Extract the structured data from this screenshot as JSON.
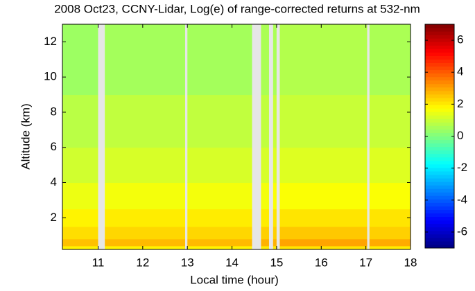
{
  "chart_data": {
    "type": "heatmap",
    "title": "2008 Oct23, CCNY-Lidar, Log(e) of range-corrected returns at 532-nm",
    "xlabel": "Local time (hour)",
    "ylabel": "Altitude (km)",
    "xlim": [
      10.2,
      18.0
    ],
    "xticks": [
      11,
      12,
      13,
      14,
      15,
      16,
      17,
      18
    ],
    "ylim": [
      0.2,
      13
    ],
    "yticks": [
      2,
      4,
      6,
      8,
      10,
      12
    ],
    "x_bins": [
      10.2,
      11.0,
      11.15,
      12.95,
      13.0,
      14.45,
      14.65,
      14.83,
      14.92,
      15.0,
      15.07,
      17.03,
      17.08,
      18.0
    ],
    "y_bins": [
      0.2,
      0.4,
      0.8,
      1.5,
      2.5,
      4,
      6,
      9,
      13
    ],
    "z": [
      [
        1.9,
        null,
        1.9,
        null,
        1.9,
        null,
        2.0,
        null,
        2.0,
        null,
        2.1,
        null,
        2.0
      ],
      [
        2.6,
        null,
        2.7,
        null,
        2.7,
        null,
        2.8,
        null,
        2.8,
        null,
        3.0,
        null,
        2.9
      ],
      [
        2.2,
        null,
        2.3,
        null,
        2.3,
        null,
        2.4,
        null,
        2.4,
        null,
        2.5,
        null,
        2.4
      ],
      [
        1.9,
        null,
        2.0,
        null,
        2.0,
        null,
        2.0,
        null,
        2.1,
        null,
        2.1,
        null,
        2.1
      ],
      [
        1.5,
        null,
        1.6,
        null,
        1.6,
        null,
        1.6,
        null,
        1.7,
        null,
        1.7,
        null,
        1.7
      ],
      [
        1.1,
        null,
        1.2,
        null,
        1.2,
        null,
        1.2,
        null,
        1.3,
        null,
        1.3,
        null,
        1.3
      ],
      [
        0.8,
        null,
        0.9,
        null,
        0.9,
        null,
        0.9,
        null,
        1.0,
        null,
        1.0,
        null,
        1.0
      ],
      [
        0.4,
        null,
        0.5,
        null,
        0.5,
        null,
        0.6,
        null,
        0.6,
        null,
        0.7,
        null,
        0.6
      ]
    ],
    "colormap": "jet",
    "clim": [
      -7,
      7
    ],
    "cticks": [
      -6,
      -4,
      -2,
      0,
      2,
      4,
      6
    ],
    "missing_color": "#e6e6e6"
  }
}
